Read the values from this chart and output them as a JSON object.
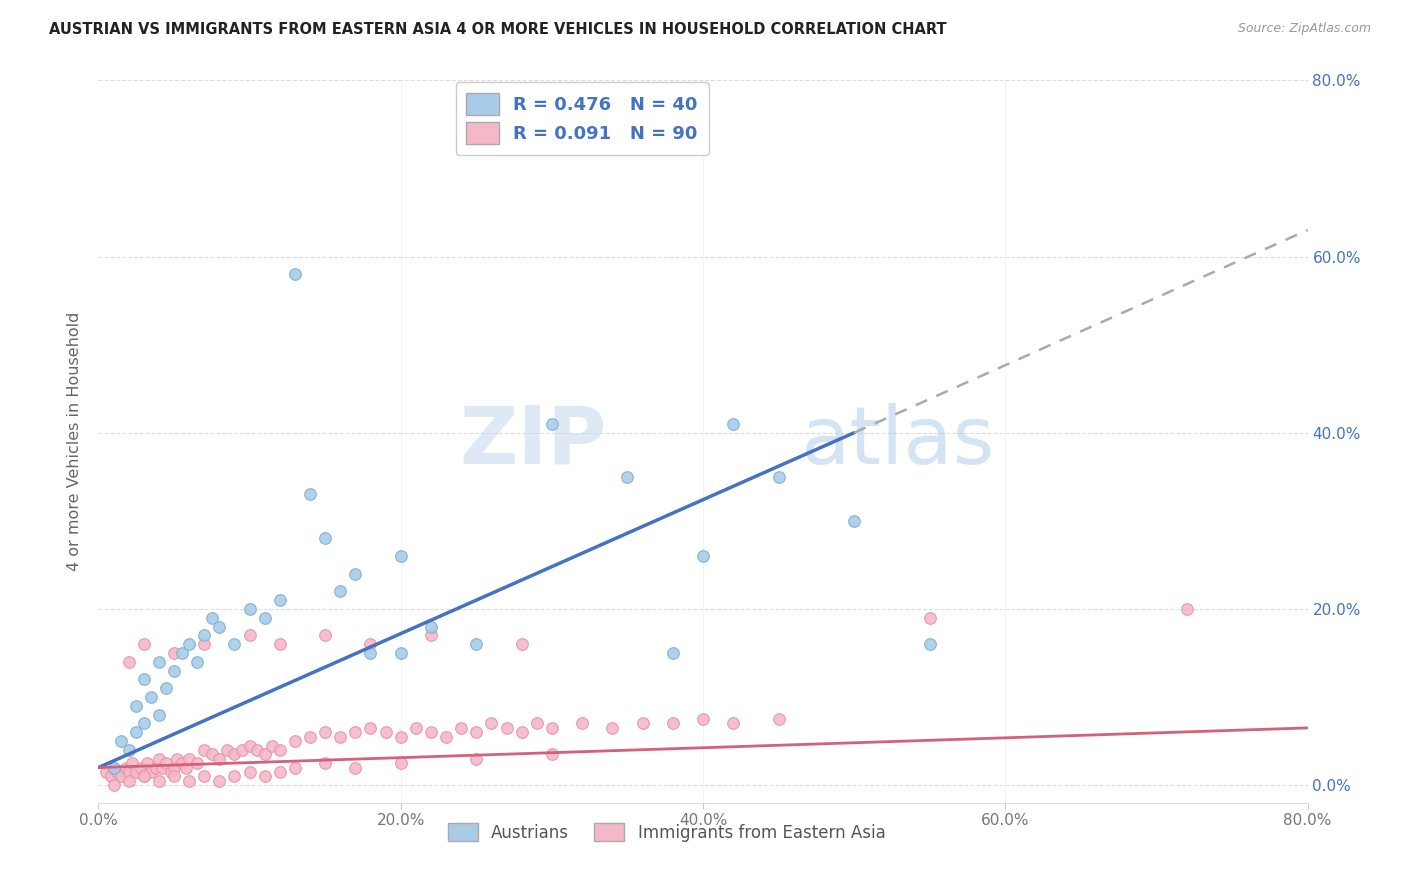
{
  "title": "AUSTRIAN VS IMMIGRANTS FROM EASTERN ASIA 4 OR MORE VEHICLES IN HOUSEHOLD CORRELATION CHART",
  "source": "Source: ZipAtlas.com",
  "ylabel": "4 or more Vehicles in Household",
  "x_min": 0.0,
  "x_max": 0.8,
  "y_min": -0.02,
  "y_max": 0.8,
  "x_ticks": [
    0.0,
    0.2,
    0.4,
    0.6,
    0.8
  ],
  "x_tick_labels": [
    "0.0%",
    "20.0%",
    "40.0%",
    "60.0%",
    "80.0%"
  ],
  "y_ticks": [
    0.0,
    0.2,
    0.4,
    0.6,
    0.8
  ],
  "y_tick_labels_right": [
    "0.0%",
    "20.0%",
    "40.0%",
    "60.0%",
    "80.0%"
  ],
  "austrians_color": "#a8cce8",
  "immigrants_color": "#f5b8c8",
  "austrians_edge_color": "#7aafd4",
  "immigrants_edge_color": "#e890a8",
  "austrians_line_color": "#4472c4",
  "immigrants_line_color": "#d4607a",
  "dashed_line_color": "#aaaaaa",
  "legend_text_color": "#4472c4",
  "right_tick_color": "#4472c4",
  "legend_R1": "R = 0.476",
  "legend_N1": "N = 40",
  "legend_R2": "R = 0.091",
  "legend_N2": "N = 90",
  "legend_label1": "Austrians",
  "legend_label2": "Immigrants from Eastern Asia",
  "watermark": "ZIPatlas",
  "watermark_color": "#ccddf0",
  "aus_line_x_start": 0.0,
  "aus_line_x_solid_end": 0.5,
  "aus_line_x_dash_end": 0.8,
  "aus_line_y_start": 0.02,
  "aus_line_y_solid_end": 0.4,
  "aus_line_y_dash_end": 0.63,
  "imm_line_x_start": 0.0,
  "imm_line_x_end": 0.8,
  "imm_line_y_start": 0.02,
  "imm_line_y_end": 0.065,
  "austrians_x": [
    0.01,
    0.015,
    0.02,
    0.025,
    0.025,
    0.03,
    0.03,
    0.035,
    0.04,
    0.04,
    0.045,
    0.05,
    0.055,
    0.06,
    0.065,
    0.07,
    0.075,
    0.08,
    0.09,
    0.1,
    0.11,
    0.12,
    0.13,
    0.15,
    0.17,
    0.2,
    0.22,
    0.25,
    0.3,
    0.35,
    0.38,
    0.4,
    0.42,
    0.45,
    0.5,
    0.55,
    0.14,
    0.16,
    0.18,
    0.2
  ],
  "austrians_y": [
    0.02,
    0.05,
    0.04,
    0.06,
    0.09,
    0.07,
    0.12,
    0.1,
    0.08,
    0.14,
    0.11,
    0.13,
    0.15,
    0.16,
    0.14,
    0.17,
    0.19,
    0.18,
    0.16,
    0.2,
    0.19,
    0.21,
    0.58,
    0.28,
    0.24,
    0.26,
    0.18,
    0.16,
    0.41,
    0.35,
    0.15,
    0.26,
    0.41,
    0.35,
    0.3,
    0.16,
    0.33,
    0.22,
    0.15,
    0.15
  ],
  "immigrants_x": [
    0.005,
    0.008,
    0.01,
    0.012,
    0.015,
    0.018,
    0.02,
    0.022,
    0.025,
    0.028,
    0.03,
    0.032,
    0.035,
    0.038,
    0.04,
    0.042,
    0.045,
    0.048,
    0.05,
    0.052,
    0.055,
    0.058,
    0.06,
    0.065,
    0.07,
    0.075,
    0.08,
    0.085,
    0.09,
    0.095,
    0.1,
    0.105,
    0.11,
    0.115,
    0.12,
    0.13,
    0.14,
    0.15,
    0.16,
    0.17,
    0.18,
    0.19,
    0.2,
    0.21,
    0.22,
    0.23,
    0.24,
    0.25,
    0.26,
    0.27,
    0.28,
    0.29,
    0.3,
    0.32,
    0.34,
    0.36,
    0.38,
    0.4,
    0.42,
    0.45,
    0.01,
    0.02,
    0.03,
    0.04,
    0.05,
    0.06,
    0.07,
    0.08,
    0.09,
    0.1,
    0.11,
    0.12,
    0.13,
    0.15,
    0.17,
    0.2,
    0.25,
    0.3,
    0.55,
    0.72,
    0.02,
    0.03,
    0.05,
    0.07,
    0.1,
    0.12,
    0.15,
    0.18,
    0.22,
    0.28
  ],
  "immigrants_y": [
    0.015,
    0.01,
    0.02,
    0.015,
    0.01,
    0.02,
    0.015,
    0.025,
    0.015,
    0.02,
    0.01,
    0.025,
    0.015,
    0.02,
    0.03,
    0.02,
    0.025,
    0.015,
    0.02,
    0.03,
    0.025,
    0.02,
    0.03,
    0.025,
    0.04,
    0.035,
    0.03,
    0.04,
    0.035,
    0.04,
    0.045,
    0.04,
    0.035,
    0.045,
    0.04,
    0.05,
    0.055,
    0.06,
    0.055,
    0.06,
    0.065,
    0.06,
    0.055,
    0.065,
    0.06,
    0.055,
    0.065,
    0.06,
    0.07,
    0.065,
    0.06,
    0.07,
    0.065,
    0.07,
    0.065,
    0.07,
    0.07,
    0.075,
    0.07,
    0.075,
    0.0,
    0.005,
    0.01,
    0.005,
    0.01,
    0.005,
    0.01,
    0.005,
    0.01,
    0.015,
    0.01,
    0.015,
    0.02,
    0.025,
    0.02,
    0.025,
    0.03,
    0.035,
    0.19,
    0.2,
    0.14,
    0.16,
    0.15,
    0.16,
    0.17,
    0.16,
    0.17,
    0.16,
    0.17,
    0.16
  ]
}
